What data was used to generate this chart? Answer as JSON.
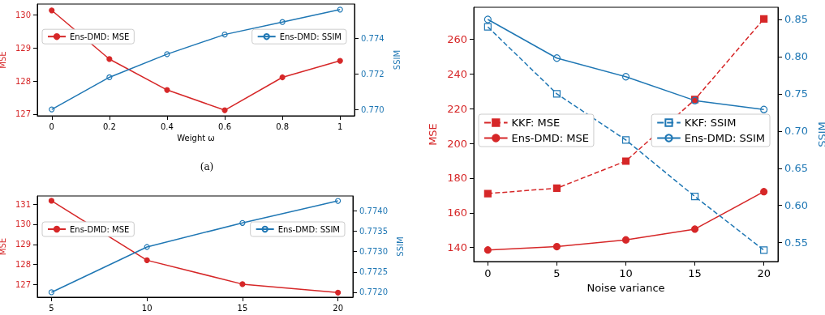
{
  "chart_data": [
    {
      "type": "line",
      "xlabel": "Weight ω",
      "ylabel": "MSE",
      "y2label": "SSIM",
      "annotations": [
        "(a)"
      ],
      "x": [
        0,
        0.2,
        0.4,
        0.6,
        0.8,
        1
      ],
      "xlim": [
        -0.05,
        1.05
      ],
      "xticks": [
        0,
        0.2,
        0.4,
        0.6,
        0.8,
        1
      ],
      "ylim": [
        126.95,
        130.32
      ],
      "yticks": [
        127,
        128,
        129,
        130
      ],
      "y2lim": [
        0.76964,
        0.77591
      ],
      "y2ticks": [
        {
          "value": 0.77,
          "label": "0.770"
        },
        {
          "value": 0.772,
          "label": "0.772"
        },
        {
          "value": 0.774,
          "label": "0.774"
        }
      ],
      "legend": "center",
      "grid": false,
      "series": [
        {
          "name": "Ens-DMD: MSE",
          "color": "#d62728",
          "marker": "circle",
          "line_style": "solid",
          "values": [
            130.13,
            128.66,
            127.73,
            127.12,
            128.11,
            128.61
          ]
        },
        {
          "name": "Ens-DMD: SSIM",
          "color": "#1f77b4",
          "marker": "circle",
          "line_style": "solid",
          "axis": "y2",
          "values": [
            0.77,
            0.7718,
            0.7731,
            0.7742,
            0.7749,
            0.7756
          ]
        }
      ]
    },
    {
      "type": "line",
      "ylabel": "MSE",
      "y2label": "SSIM",
      "x": [
        5,
        10,
        15,
        20
      ],
      "xlim": [
        4.26,
        20.78
      ],
      "xticks": [
        5,
        10,
        15,
        20
      ],
      "ylim": [
        126.37,
        131.41
      ],
      "yticks": [
        127,
        128,
        129,
        130,
        131
      ],
      "y2lim": [
        0.77188,
        0.77436
      ],
      "y2ticks": [
        {
          "value": 0.772,
          "label": "0.7720"
        },
        {
          "value": 0.7725,
          "label": "0.7725"
        },
        {
          "value": 0.773,
          "label": "0.7730"
        },
        {
          "value": 0.7735,
          "label": "0.7735"
        },
        {
          "value": 0.774,
          "label": "0.7740"
        }
      ],
      "legend": "center",
      "grid": false,
      "series": [
        {
          "name": "Ens-DMD: MSE",
          "color": "#d62728",
          "marker": "circle",
          "line_style": "solid",
          "values": [
            131.17,
            128.21,
            127.02,
            126.6
          ]
        },
        {
          "name": "Ens-DMD: SSIM",
          "color": "#1f77b4",
          "marker": "circle",
          "line_style": "solid",
          "axis": "y2",
          "values": [
            0.772,
            0.77311,
            0.7737,
            0.77424
          ]
        }
      ]
    },
    {
      "type": "line",
      "xlabel": "Noise variance",
      "ylabel": "MSE",
      "y2label": "SSIM",
      "x": [
        0,
        5,
        10,
        15,
        20
      ],
      "xlim": [
        -1.02,
        21.02
      ],
      "xticks": [
        0,
        5,
        10,
        15,
        20
      ],
      "ylim": [
        131.9,
        278.5
      ],
      "yticks": [
        140,
        160,
        180,
        200,
        220,
        240,
        260
      ],
      "y2lim": [
        0.5246,
        0.8663
      ],
      "y2ticks": [
        {
          "value": 0.55,
          "label": "0.55"
        },
        {
          "value": 0.6,
          "label": "0.60"
        },
        {
          "value": 0.65,
          "label": "0.65"
        },
        {
          "value": 0.7,
          "label": "0.70"
        },
        {
          "value": 0.75,
          "label": "0.75"
        },
        {
          "value": 0.8,
          "label": "0.80"
        },
        {
          "value": 0.85,
          "label": "0.85"
        }
      ],
      "legend": "center",
      "grid": false,
      "series": [
        {
          "name": "KKF: MSE",
          "color": "#d62728",
          "marker": "square",
          "line_style": "dashed",
          "values": [
            171.1,
            174.2,
            189.8,
            225.3,
            271.8
          ]
        },
        {
          "name": "Ens-DMD: MSE",
          "color": "#d62728",
          "marker": "circle",
          "line_style": "solid",
          "values": [
            138.6,
            140.5,
            144.4,
            150.6,
            172.2
          ]
        },
        {
          "name": "KKF: SSIM",
          "color": "#1f77b4",
          "marker": "square",
          "line_style": "dashed",
          "axis": "y2",
          "values": [
            0.84,
            0.75,
            0.688,
            0.612,
            0.54
          ]
        },
        {
          "name": "Ens-DMD: SSIM",
          "color": "#1f77b4",
          "marker": "circle",
          "line_style": "solid",
          "axis": "y2",
          "values": [
            0.85,
            0.798,
            0.773,
            0.741,
            0.729
          ]
        }
      ]
    }
  ]
}
